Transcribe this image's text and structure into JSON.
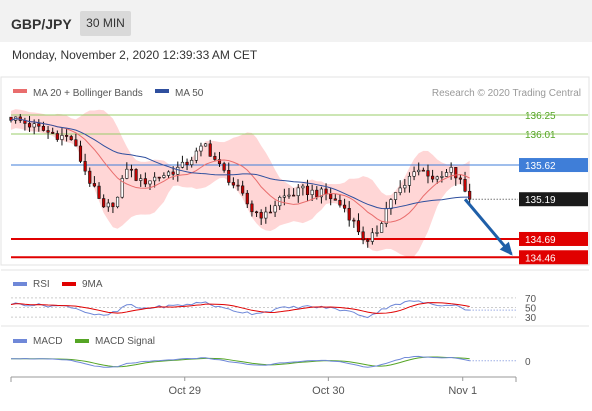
{
  "header": {
    "pair": "GBP/JPY",
    "interval": "30 MIN"
  },
  "timestamp": "Monday, November 2, 2020 12:39:33 AM CET",
  "colors": {
    "bull": "#ffffff",
    "bear": "#c40000",
    "candle_outline": "#111111",
    "ma20": "#e96d6d",
    "bollinger_fill": "#ffc8c8",
    "ma50": "#2f4f9e",
    "resistance": "#9acc6a",
    "pivot": "#3f7ed8",
    "support": "#e00000",
    "price_label": "#1a1a1a",
    "arrow": "#1f5fa8",
    "rsi": "#6f88d8",
    "rsi_ma": "#e00000",
    "macd": "#6f88d8",
    "macd_signal": "#55a525",
    "watermark": "#999999"
  },
  "chart_data": [
    {
      "type": "candlestick",
      "title": "",
      "legend": [
        {
          "label": "MA 20 + Bollinger Bands",
          "color": "#e96d6d"
        },
        {
          "label": "MA 50",
          "color": "#2f4f9e"
        }
      ],
      "watermark": "Research © 2020 Trading Central",
      "ylim": [
        134.35,
        136.35
      ],
      "x_tick_labels": [
        "Oct 29",
        "Oct 30",
        "Nov 1"
      ],
      "x_tick_positions": [
        37.5,
        68.5,
        97.5
      ],
      "x_count": 110,
      "levels": [
        {
          "label": "136.25",
          "value": 136.25,
          "kind": "resistance"
        },
        {
          "label": "136.01",
          "value": 136.01,
          "kind": "resistance"
        },
        {
          "label": "135.62",
          "value": 135.62,
          "kind": "pivot"
        },
        {
          "label": "134.69",
          "value": 134.69,
          "kind": "support"
        },
        {
          "label": "134.46",
          "value": 134.46,
          "kind": "support"
        }
      ],
      "last_price": {
        "label": "135.19",
        "value": 135.19
      },
      "forecast_arrow": {
        "from": {
          "x": 98,
          "y": 135.19
        },
        "to": {
          "x": 108,
          "y": 134.5
        }
      },
      "anchors": [
        [
          0,
          136.22
        ],
        [
          8,
          136.03
        ],
        [
          13,
          135.95
        ],
        [
          17,
          135.42
        ],
        [
          20,
          135.05
        ],
        [
          23,
          135.2
        ],
        [
          25,
          135.6
        ],
        [
          28,
          135.4
        ],
        [
          33,
          135.5
        ],
        [
          37,
          135.6
        ],
        [
          42,
          135.87
        ],
        [
          45,
          135.6
        ],
        [
          49,
          135.3
        ],
        [
          52,
          135.05
        ],
        [
          55,
          134.98
        ],
        [
          58,
          135.2
        ],
        [
          63,
          135.3
        ],
        [
          68,
          135.25
        ],
        [
          72,
          135.08
        ],
        [
          75,
          134.8
        ],
        [
          77,
          134.62
        ],
        [
          79,
          134.8
        ],
        [
          82,
          135.2
        ],
        [
          85,
          135.35
        ],
        [
          87,
          135.58
        ],
        [
          90,
          135.52
        ],
        [
          92,
          135.42
        ],
        [
          95,
          135.55
        ],
        [
          97,
          135.4
        ],
        [
          99,
          135.19
        ]
      ]
    },
    {
      "type": "line",
      "name": "RSI",
      "legend": [
        {
          "label": "RSI",
          "color": "#6f88d8"
        },
        {
          "label": "9MA",
          "color": "#e00000"
        }
      ],
      "ylim": [
        20,
        80
      ],
      "levels": [
        {
          "label": "70",
          "value": 70
        },
        {
          "label": "50",
          "value": 50
        },
        {
          "label": "30",
          "value": 30
        }
      ],
      "anchors": [
        [
          0,
          58
        ],
        [
          8,
          54
        ],
        [
          13,
          52
        ],
        [
          17,
          38
        ],
        [
          20,
          32
        ],
        [
          23,
          42
        ],
        [
          25,
          56
        ],
        [
          28,
          48
        ],
        [
          33,
          52
        ],
        [
          37,
          55
        ],
        [
          42,
          61
        ],
        [
          45,
          50
        ],
        [
          49,
          42
        ],
        [
          52,
          38
        ],
        [
          55,
          41
        ],
        [
          58,
          48
        ],
        [
          63,
          52
        ],
        [
          68,
          50
        ],
        [
          72,
          44
        ],
        [
          75,
          36
        ],
        [
          77,
          31
        ],
        [
          79,
          40
        ],
        [
          82,
          55
        ],
        [
          85,
          60
        ],
        [
          87,
          64
        ],
        [
          90,
          58
        ],
        [
          92,
          55
        ],
        [
          95,
          57
        ],
        [
          97,
          51
        ],
        [
          99,
          44
        ]
      ]
    },
    {
      "type": "line",
      "name": "MACD",
      "legend": [
        {
          "label": "MACD",
          "color": "#6f88d8"
        },
        {
          "label": "MACD Signal",
          "color": "#55a525"
        }
      ],
      "ylim": [
        -0.4,
        0.4
      ],
      "levels": [
        {
          "label": "0",
          "value": 0
        }
      ],
      "anchors": [
        [
          0,
          0.08
        ],
        [
          8,
          0.06
        ],
        [
          13,
          0.02
        ],
        [
          17,
          -0.12
        ],
        [
          20,
          -0.2
        ],
        [
          23,
          -0.18
        ],
        [
          25,
          -0.08
        ],
        [
          28,
          -0.03
        ],
        [
          33,
          0.02
        ],
        [
          37,
          0.06
        ],
        [
          42,
          0.1
        ],
        [
          45,
          0.03
        ],
        [
          49,
          -0.06
        ],
        [
          52,
          -0.12
        ],
        [
          55,
          -0.13
        ],
        [
          58,
          -0.06
        ],
        [
          63,
          0.0
        ],
        [
          68,
          0.01
        ],
        [
          72,
          -0.04
        ],
        [
          75,
          -0.14
        ],
        [
          77,
          -0.2
        ],
        [
          79,
          -0.16
        ],
        [
          82,
          -0.02
        ],
        [
          85,
          0.1
        ],
        [
          87,
          0.14
        ],
        [
          90,
          0.12
        ],
        [
          92,
          0.1
        ],
        [
          95,
          0.11
        ],
        [
          97,
          0.07
        ],
        [
          99,
          0.0
        ]
      ]
    }
  ]
}
